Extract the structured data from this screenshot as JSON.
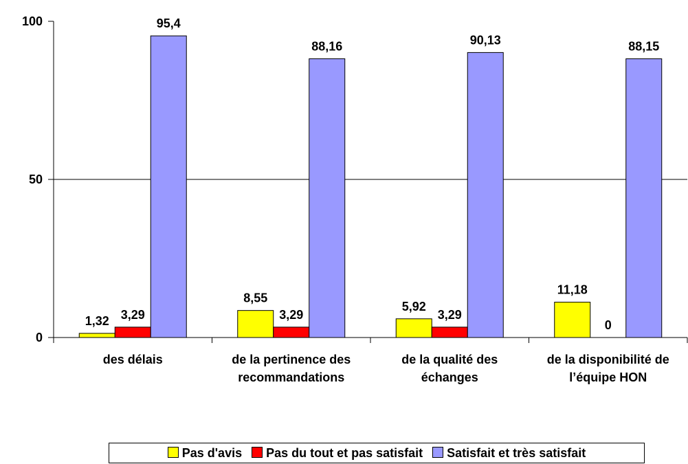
{
  "chart_data": {
    "type": "bar",
    "categories": [
      "des délais",
      "de la pertinence des recommandations",
      "de la qualité des échanges",
      "de la disponibilité de l’équipe HON"
    ],
    "series": [
      {
        "name": "Pas d'avis",
        "color": "#ffff00",
        "values": [
          1.32,
          8.55,
          5.92,
          11.18
        ],
        "value_labels": [
          "1,32",
          "8,55",
          "5,92",
          "11,18"
        ]
      },
      {
        "name": "Pas du tout et pas satisfait",
        "color": "#ff0000",
        "values": [
          3.29,
          3.29,
          3.29,
          0
        ],
        "value_labels": [
          "3,29",
          "3,29",
          "3,29",
          "0"
        ]
      },
      {
        "name": "Satisfait et très satisfait",
        "color": "#9999ff",
        "values": [
          95.4,
          88.16,
          90.13,
          88.15
        ],
        "value_labels": [
          "95,4",
          "88,16",
          "90,13",
          "88,15"
        ]
      }
    ],
    "ylim": [
      0,
      100
    ],
    "yticks": [
      0,
      50,
      100
    ],
    "grid": true,
    "legend": "bottom"
  }
}
